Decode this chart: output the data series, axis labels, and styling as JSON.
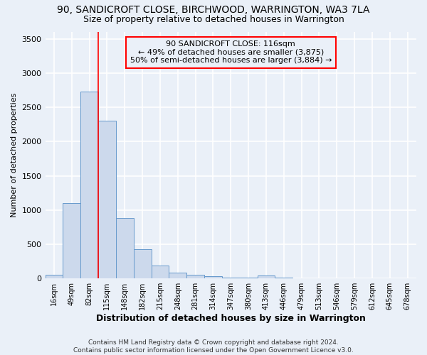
{
  "title1": "90, SANDICROFT CLOSE, BIRCHWOOD, WARRINGTON, WA3 7LA",
  "title2": "Size of property relative to detached houses in Warrington",
  "xlabel": "Distribution of detached houses by size in Warrington",
  "ylabel": "Number of detached properties",
  "footnote": "Contains HM Land Registry data © Crown copyright and database right 2024.\nContains public sector information licensed under the Open Government Licence v3.0.",
  "bar_labels": [
    "16sqm",
    "49sqm",
    "82sqm",
    "115sqm",
    "148sqm",
    "182sqm",
    "215sqm",
    "248sqm",
    "281sqm",
    "314sqm",
    "347sqm",
    "380sqm",
    "413sqm",
    "446sqm",
    "479sqm",
    "513sqm",
    "546sqm",
    "579sqm",
    "612sqm",
    "645sqm",
    "678sqm"
  ],
  "bar_values": [
    50,
    1100,
    2730,
    2300,
    880,
    430,
    190,
    90,
    55,
    30,
    10,
    10,
    40,
    8,
    3,
    2,
    1,
    0,
    0,
    0,
    0
  ],
  "bar_color": "#ccd9ec",
  "bar_edge_color": "#6699cc",
  "ylim": [
    0,
    3600
  ],
  "yticks": [
    0,
    500,
    1000,
    1500,
    2000,
    2500,
    3000,
    3500
  ],
  "property_label": "90 SANDICROFT CLOSE: 116sqm",
  "annotation_line1": "← 49% of detached houses are smaller (3,875)",
  "annotation_line2": "50% of semi-detached houses are larger (3,884) →",
  "vline_x": 2.5,
  "bg_color": "#eaf0f8",
  "grid_color": "#ffffff",
  "title1_fontsize": 10,
  "title2_fontsize": 9
}
